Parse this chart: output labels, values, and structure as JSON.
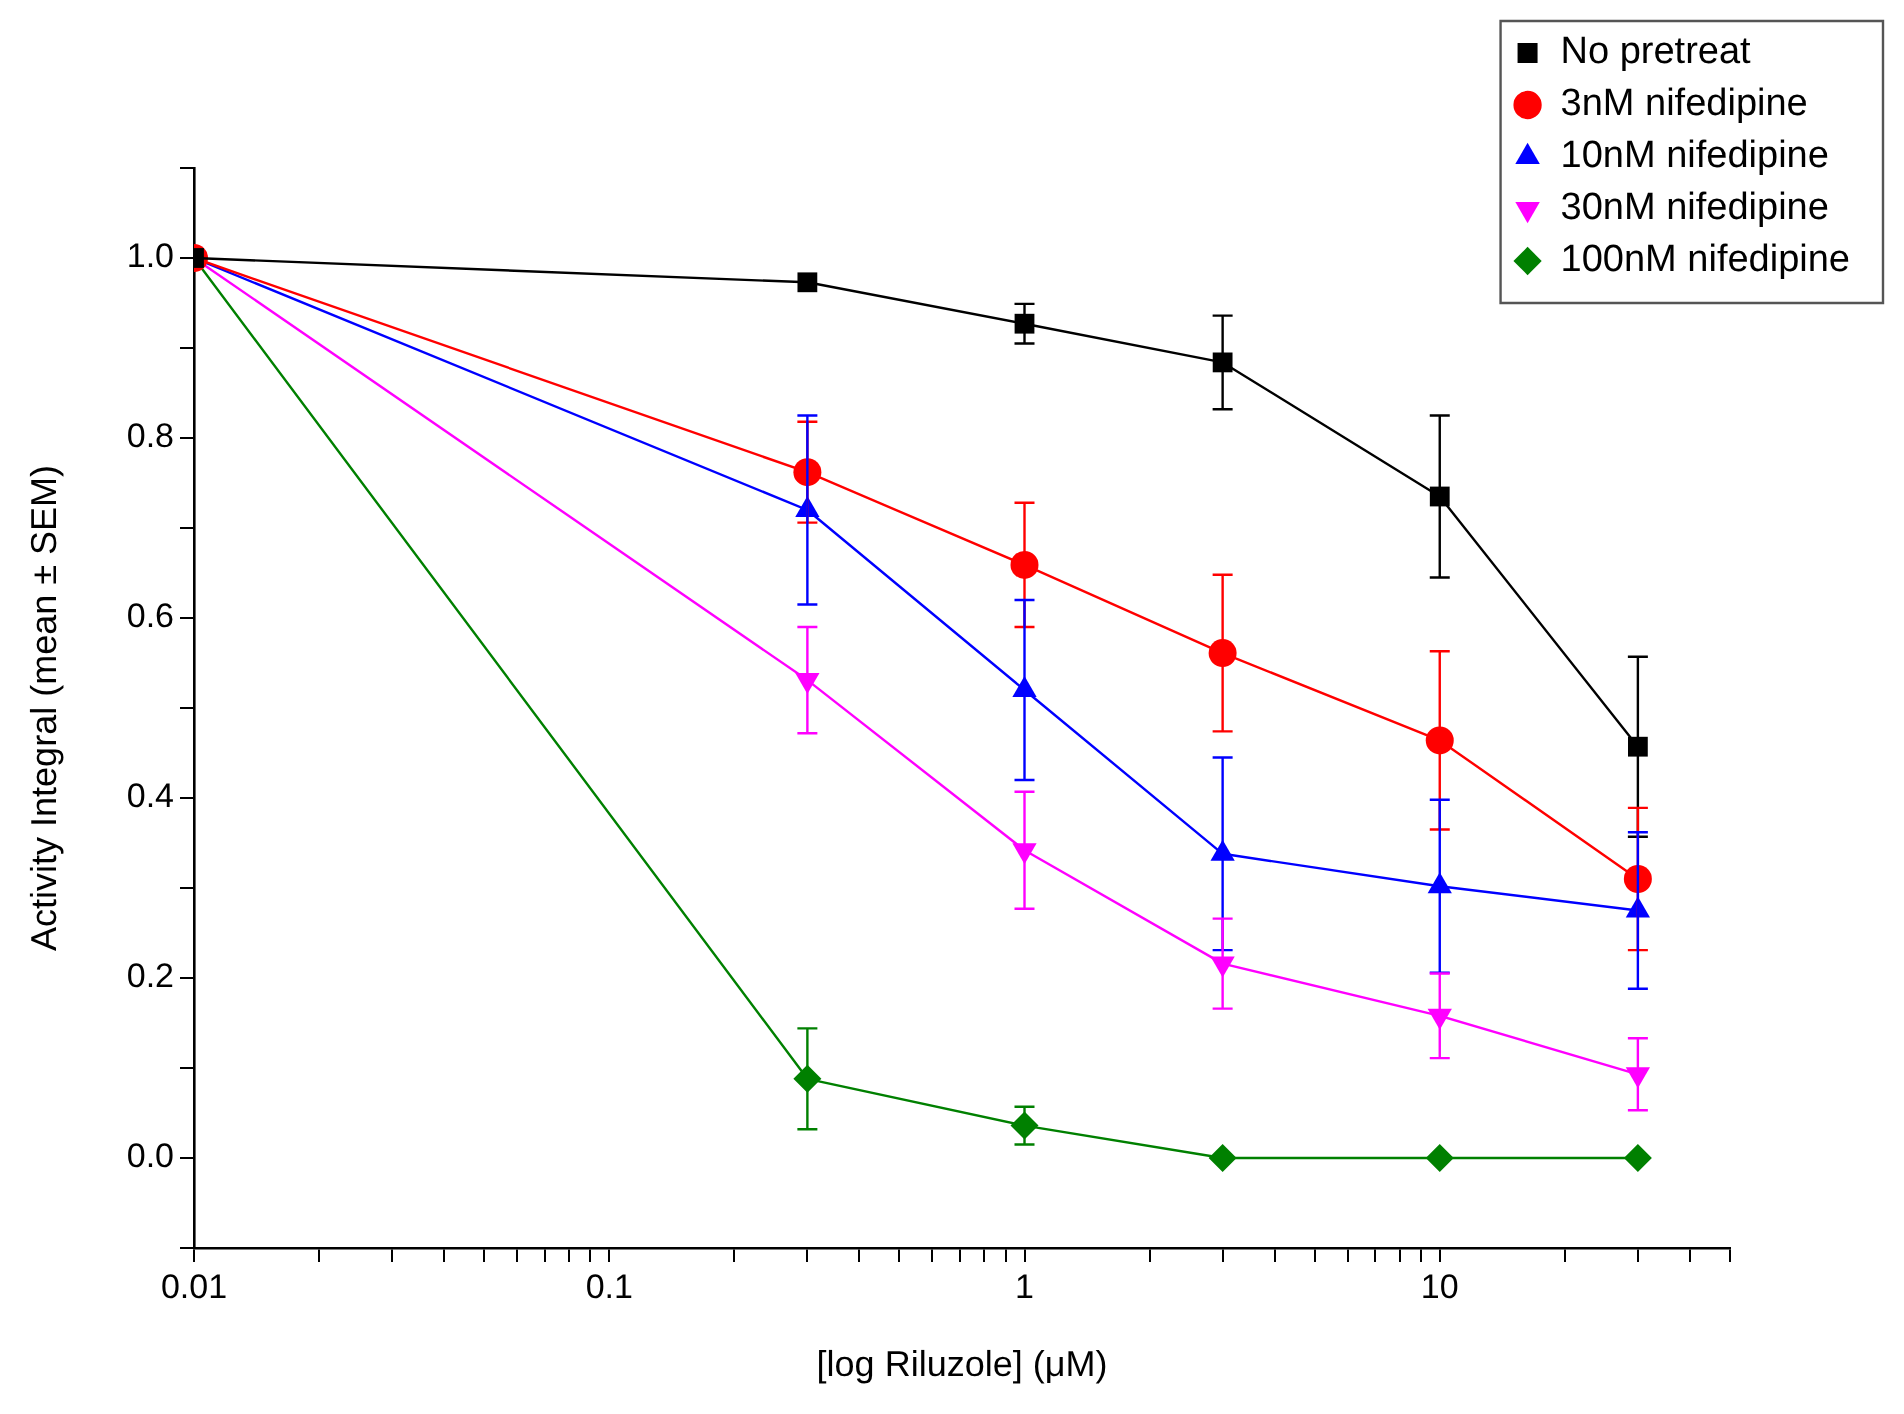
{
  "chart_data": {
    "type": "line",
    "xlabel": "[log Riluzole] (μM)",
    "ylabel": "Activity Integral (mean ± SEM)",
    "x": [
      0.01,
      0.3,
      1,
      3,
      10,
      30
    ],
    "log": "x",
    "grid": false,
    "legend": "top right",
    "line_style": "solid",
    "xlim": [
      0.01,
      50
    ],
    "xticks": [
      {
        "value": 0.01,
        "label": "0.01"
      },
      {
        "value": 0.02,
        "label": null
      },
      {
        "value": 0.03,
        "label": null
      },
      {
        "value": 0.04,
        "label": null
      },
      {
        "value": 0.05,
        "label": null
      },
      {
        "value": 0.06,
        "label": null
      },
      {
        "value": 0.07,
        "label": null
      },
      {
        "value": 0.08,
        "label": null
      },
      {
        "value": 0.09,
        "label": null
      },
      {
        "value": 0.1,
        "label": "0.1"
      },
      {
        "value": 0.2,
        "label": null
      },
      {
        "value": 0.3,
        "label": null
      },
      {
        "value": 0.4,
        "label": null
      },
      {
        "value": 0.5,
        "label": null
      },
      {
        "value": 0.6,
        "label": null
      },
      {
        "value": 0.7,
        "label": null
      },
      {
        "value": 0.8,
        "label": null
      },
      {
        "value": 0.9,
        "label": null
      },
      1,
      {
        "value": 2,
        "label": null
      },
      {
        "value": 3,
        "label": null
      },
      {
        "value": 4,
        "label": null
      },
      {
        "value": 5,
        "label": null
      },
      {
        "value": 6,
        "label": null
      },
      {
        "value": 7,
        "label": null
      },
      {
        "value": 8,
        "label": null
      },
      {
        "value": 9,
        "label": null
      },
      10,
      {
        "value": 20,
        "label": null
      },
      {
        "value": 30,
        "label": null
      },
      {
        "value": 40,
        "label": null
      },
      {
        "value": 50,
        "label": null
      }
    ],
    "ylim": [
      -0.1,
      1.1
    ],
    "yticks": [
      {
        "value": -0.1,
        "label": null
      },
      {
        "value": 0,
        "label": "0.0"
      },
      {
        "value": 0.1,
        "label": null
      },
      {
        "value": 0.2,
        "label": "0.2"
      },
      {
        "value": 0.3,
        "label": null
      },
      {
        "value": 0.4,
        "label": "0.4"
      },
      {
        "value": 0.5,
        "label": null
      },
      {
        "value": 0.6,
        "label": "0.6"
      },
      {
        "value": 0.7,
        "label": null
      },
      {
        "value": 0.8,
        "label": "0.8"
      },
      {
        "value": 0.9,
        "label": null
      },
      {
        "value": 1,
        "label": "1.0"
      },
      {
        "value": 1.1,
        "label": null
      }
    ],
    "series": [
      {
        "name": "No pretreat",
        "color": "#000000",
        "marker": "square",
        "values": [
          1,
          0.973,
          0.927,
          0.884,
          0.735,
          0.457
        ],
        "errors": [
          null,
          null,
          0.022,
          0.052,
          0.09,
          0.1
        ]
      },
      {
        "name": "3nM nifedipine",
        "color": "#ff0000",
        "marker": "circle",
        "values": [
          1,
          0.762,
          0.659,
          0.561,
          0.464,
          0.31
        ],
        "errors": [
          null,
          0.056,
          0.069,
          0.087,
          0.099,
          0.079
        ]
      },
      {
        "name": "10nM nifedipine",
        "color": "#0000ff",
        "marker": "triangle",
        "values": [
          1,
          0.72,
          0.52,
          0.338,
          0.302,
          0.275
        ],
        "errors": [
          null,
          0.105,
          0.1,
          0.107,
          0.096,
          0.087
        ]
      },
      {
        "name": "30nM nifedipine",
        "color": "#ff00ff",
        "marker": "triangle-down",
        "values": [
          1,
          0.531,
          0.342,
          0.216,
          0.158,
          0.093
        ],
        "errors": [
          null,
          0.059,
          0.065,
          0.05,
          0.047,
          0.04
        ]
      },
      {
        "name": "100nM nifedipine",
        "color": "#008000",
        "marker": "diamond",
        "values": [
          1,
          0.088,
          0.036,
          0,
          0,
          0
        ],
        "errors": [
          null,
          0.056,
          0.021,
          null,
          null,
          null
        ]
      }
    ]
  }
}
